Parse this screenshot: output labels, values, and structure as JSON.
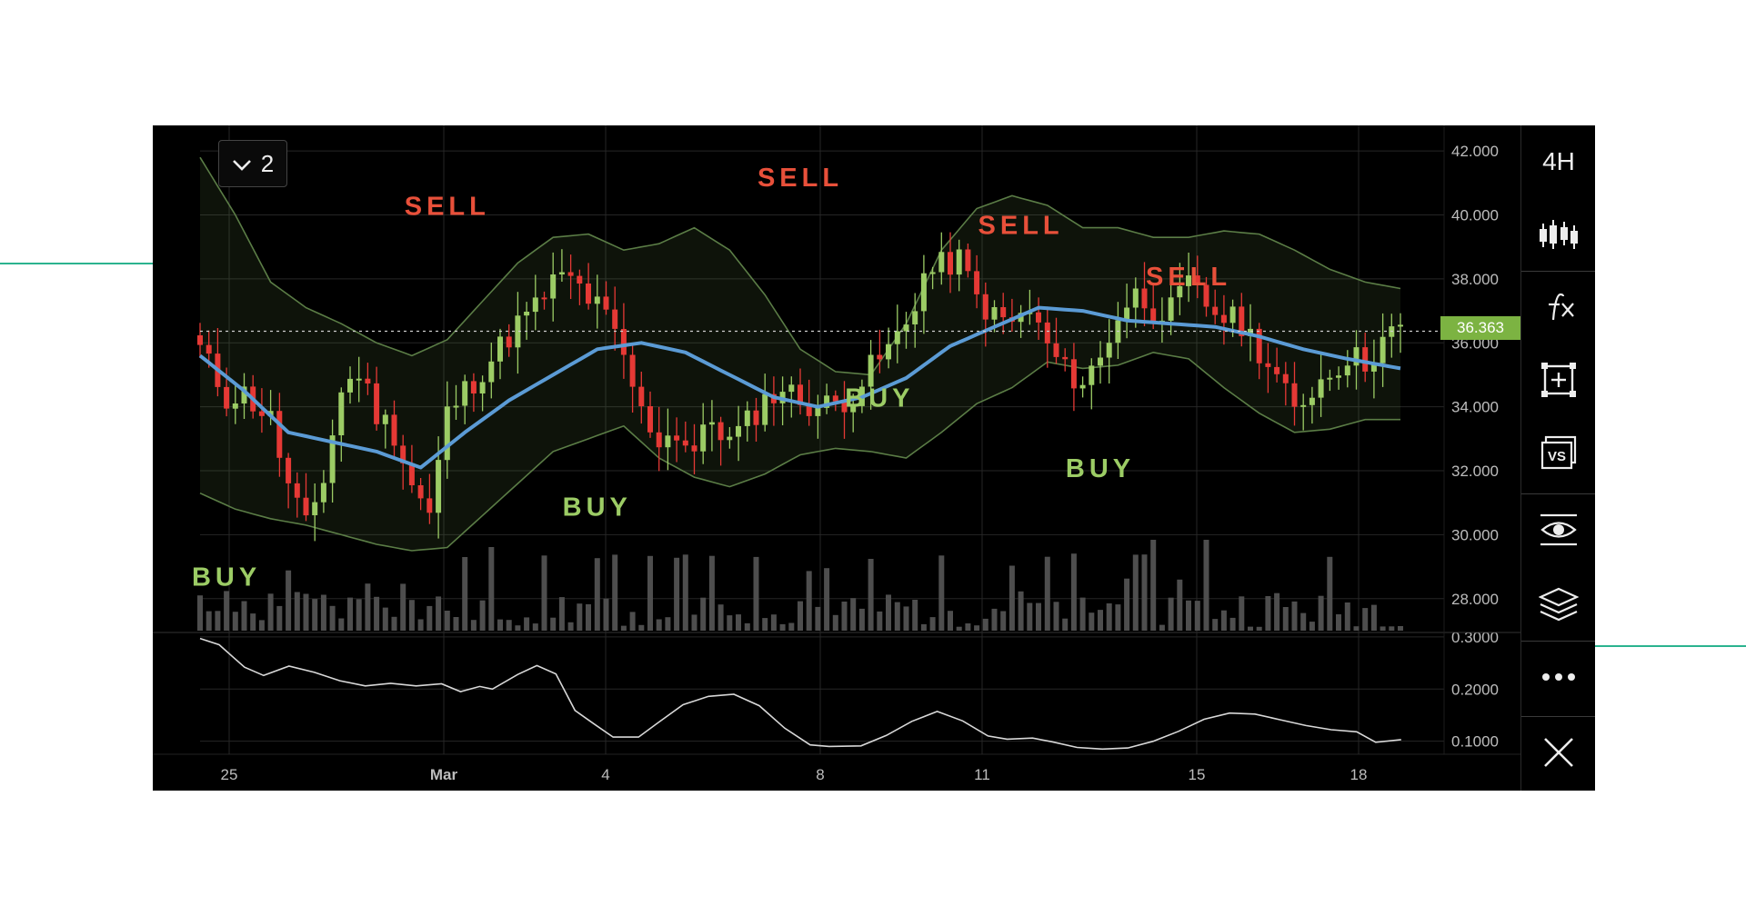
{
  "chart_data": {
    "type": "candlestick",
    "interval_label": "4H",
    "series_count_label": "2",
    "x_tick_labels": [
      "25",
      "Mar",
      "4",
      "8",
      "11",
      "15",
      "18"
    ],
    "price_axis": {
      "ticks": [
        "42.000",
        "40.000",
        "38.000",
        "36.000",
        "34.000",
        "32.000",
        "30.000",
        "28.000"
      ],
      "range": [
        27000,
        42800
      ]
    },
    "oscillator_axis": {
      "ticks": [
        "0.3000",
        "0.2000",
        "0.1000"
      ],
      "range": [
        0.075,
        0.305
      ]
    },
    "last_price": "36.363",
    "signals": [
      {
        "label": "BUY",
        "x": 3,
        "price": 28400
      },
      {
        "label": "SELL",
        "x": 28,
        "price": 40000
      },
      {
        "label": "BUY",
        "x": 45,
        "price": 30600
      },
      {
        "label": "SELL",
        "x": 68,
        "price": 40900
      },
      {
        "label": "BUY",
        "x": 77,
        "price": 34000
      },
      {
        "label": "SELL",
        "x": 93,
        "price": 39400
      },
      {
        "label": "BUY",
        "x": 102,
        "price": 31800
      },
      {
        "label": "SELL",
        "x": 112,
        "price": 37800
      }
    ],
    "anchors": {
      "close": [
        [
          0,
          35.8
        ],
        [
          3,
          34.3
        ],
        [
          5,
          34.4
        ],
        [
          8,
          33.6
        ],
        [
          10,
          31.5
        ],
        [
          12,
          30.2
        ],
        [
          14,
          31.8
        ],
        [
          16,
          34.5
        ],
        [
          18,
          35.1
        ],
        [
          20,
          33.8
        ],
        [
          22,
          33.2
        ],
        [
          24,
          31.6
        ],
        [
          26,
          30.6
        ],
        [
          28,
          33.8
        ],
        [
          30,
          34.5
        ],
        [
          33,
          35.5
        ],
        [
          36,
          36.6
        ],
        [
          38,
          37.1
        ],
        [
          40,
          37.9
        ],
        [
          42,
          38.0
        ],
        [
          44,
          37.4
        ],
        [
          46,
          36.8
        ],
        [
          48,
          35.5
        ],
        [
          50,
          33.8
        ],
        [
          52,
          33.0
        ],
        [
          54,
          33.2
        ],
        [
          56,
          32.6
        ],
        [
          58,
          33.6
        ],
        [
          60,
          32.9
        ],
        [
          62,
          33.5
        ],
        [
          64,
          34.2
        ],
        [
          66,
          34.6
        ],
        [
          68,
          34.2
        ],
        [
          70,
          34.0
        ],
        [
          72,
          34.1
        ],
        [
          74,
          34.4
        ],
        [
          76,
          35.2
        ],
        [
          78,
          35.8
        ],
        [
          80,
          36.6
        ],
        [
          82,
          38.1
        ],
        [
          84,
          38.4
        ],
        [
          86,
          38.6
        ],
        [
          88,
          37.4
        ],
        [
          90,
          36.8
        ],
        [
          92,
          36.6
        ],
        [
          94,
          37.0
        ],
        [
          96,
          35.9
        ],
        [
          98,
          35.1
        ],
        [
          100,
          34.8
        ],
        [
          102,
          35.5
        ],
        [
          104,
          36.9
        ],
        [
          106,
          37.5
        ],
        [
          108,
          37.1
        ],
        [
          110,
          37.0
        ],
        [
          112,
          37.8
        ],
        [
          114,
          37.2
        ],
        [
          116,
          36.8
        ],
        [
          118,
          36.6
        ],
        [
          120,
          35.8
        ],
        [
          122,
          34.9
        ],
        [
          124,
          33.8
        ],
        [
          126,
          34.6
        ],
        [
          128,
          35.1
        ],
        [
          130,
          35.6
        ],
        [
          132,
          35.4
        ],
        [
          134,
          36.1
        ],
        [
          136,
          36.4
        ]
      ],
      "ma": [
        [
          0,
          35.6
        ],
        [
          5,
          34.5
        ],
        [
          10,
          33.2
        ],
        [
          15,
          32.9
        ],
        [
          20,
          32.6
        ],
        [
          25,
          32.1
        ],
        [
          30,
          33.2
        ],
        [
          35,
          34.2
        ],
        [
          40,
          35.0
        ],
        [
          45,
          35.8
        ],
        [
          50,
          36.0
        ],
        [
          55,
          35.7
        ],
        [
          60,
          35.0
        ],
        [
          65,
          34.3
        ],
        [
          70,
          34.0
        ],
        [
          75,
          34.3
        ],
        [
          80,
          34.9
        ],
        [
          85,
          35.9
        ],
        [
          90,
          36.5
        ],
        [
          95,
          37.1
        ],
        [
          100,
          37.0
        ],
        [
          105,
          36.7
        ],
        [
          110,
          36.6
        ],
        [
          115,
          36.5
        ],
        [
          120,
          36.2
        ],
        [
          125,
          35.8
        ],
        [
          130,
          35.5
        ],
        [
          136,
          35.2
        ]
      ],
      "upper": [
        [
          0,
          41.8
        ],
        [
          4,
          40.0
        ],
        [
          8,
          37.9
        ],
        [
          12,
          37.1
        ],
        [
          16,
          36.6
        ],
        [
          20,
          36.0
        ],
        [
          24,
          35.6
        ],
        [
          28,
          36.1
        ],
        [
          32,
          37.3
        ],
        [
          36,
          38.5
        ],
        [
          40,
          39.3
        ],
        [
          44,
          39.4
        ],
        [
          48,
          38.9
        ],
        [
          52,
          39.1
        ],
        [
          56,
          39.6
        ],
        [
          60,
          38.9
        ],
        [
          64,
          37.5
        ],
        [
          68,
          35.8
        ],
        [
          72,
          35.1
        ],
        [
          76,
          35.0
        ],
        [
          80,
          36.6
        ],
        [
          84,
          38.9
        ],
        [
          88,
          40.2
        ],
        [
          92,
          40.6
        ],
        [
          96,
          40.3
        ],
        [
          100,
          39.6
        ],
        [
          104,
          39.6
        ],
        [
          108,
          39.3
        ],
        [
          112,
          39.3
        ],
        [
          116,
          39.5
        ],
        [
          120,
          39.4
        ],
        [
          124,
          38.9
        ],
        [
          128,
          38.3
        ],
        [
          132,
          37.9
        ],
        [
          136,
          37.7
        ]
      ],
      "lower": [
        [
          0,
          31.3
        ],
        [
          4,
          30.8
        ],
        [
          8,
          30.5
        ],
        [
          12,
          30.3
        ],
        [
          16,
          30.0
        ],
        [
          20,
          29.7
        ],
        [
          24,
          29.5
        ],
        [
          28,
          29.6
        ],
        [
          32,
          30.6
        ],
        [
          36,
          31.6
        ],
        [
          40,
          32.6
        ],
        [
          44,
          33.0
        ],
        [
          48,
          33.4
        ],
        [
          52,
          32.4
        ],
        [
          56,
          31.8
        ],
        [
          60,
          31.5
        ],
        [
          64,
          31.9
        ],
        [
          68,
          32.5
        ],
        [
          72,
          32.7
        ],
        [
          76,
          32.6
        ],
        [
          80,
          32.4
        ],
        [
          84,
          33.2
        ],
        [
          88,
          34.1
        ],
        [
          92,
          34.6
        ],
        [
          96,
          35.4
        ],
        [
          100,
          35.2
        ],
        [
          104,
          35.3
        ],
        [
          108,
          35.7
        ],
        [
          112,
          35.5
        ],
        [
          116,
          34.6
        ],
        [
          120,
          33.8
        ],
        [
          124,
          33.2
        ],
        [
          128,
          33.3
        ],
        [
          132,
          33.6
        ],
        [
          136,
          33.6
        ]
      ],
      "osc": [
        [
          0,
          0.297
        ],
        [
          3,
          0.285
        ],
        [
          7,
          0.242
        ],
        [
          10,
          0.226
        ],
        [
          14,
          0.244
        ],
        [
          18,
          0.232
        ],
        [
          22,
          0.216
        ],
        [
          26,
          0.206
        ],
        [
          30,
          0.211
        ],
        [
          34,
          0.206
        ],
        [
          38,
          0.21
        ],
        [
          41,
          0.195
        ],
        [
          44,
          0.205
        ],
        [
          46,
          0.2
        ],
        [
          50,
          0.228
        ],
        [
          53,
          0.245
        ],
        [
          56,
          0.229
        ],
        [
          59,
          0.159
        ],
        [
          62,
          0.133
        ],
        [
          65,
          0.108
        ],
        [
          69,
          0.108
        ],
        [
          72,
          0.135
        ],
        [
          76,
          0.17
        ],
        [
          80,
          0.186
        ],
        [
          84,
          0.19
        ],
        [
          88,
          0.168
        ],
        [
          92,
          0.125
        ],
        [
          96,
          0.093
        ],
        [
          99,
          0.09
        ],
        [
          104,
          0.091
        ],
        [
          108,
          0.111
        ],
        [
          112,
          0.138
        ],
        [
          116,
          0.157
        ],
        [
          120,
          0.139
        ],
        [
          124,
          0.11
        ],
        [
          127,
          0.104
        ],
        [
          131,
          0.106
        ],
        [
          134,
          0.099
        ],
        [
          138,
          0.088
        ],
        [
          142,
          0.085
        ],
        [
          146,
          0.087
        ],
        [
          150,
          0.1
        ],
        [
          154,
          0.119
        ],
        [
          158,
          0.142
        ],
        [
          162,
          0.154
        ],
        [
          166,
          0.152
        ],
        [
          170,
          0.141
        ],
        [
          174,
          0.13
        ],
        [
          178,
          0.122
        ],
        [
          182,
          0.118
        ],
        [
          185,
          0.098
        ],
        [
          189,
          0.103
        ]
      ]
    },
    "osc_x_scale": 0.72
  },
  "colors": {
    "up": "#9ccc65",
    "down": "#e53935",
    "ma": "#5b9bd5",
    "band_line": "#5b7d46",
    "band_fill": "rgba(130,170,95,0.11)",
    "volume": "#4e4e4e",
    "osc": "#d8d8d8",
    "sell": "#e8503a",
    "buy": "#9ccc65",
    "grid": "#262626",
    "axis_text": "#bdbdbd",
    "price_tag": "#7cb342"
  },
  "toolbar": {
    "items": [
      {
        "name": "timeframe-button",
        "icon": "text-4H"
      },
      {
        "name": "chart-type-button",
        "icon": "candles-icon"
      },
      {
        "name": "indicators-button",
        "icon": "fx-icon"
      },
      {
        "name": "add-chart-button",
        "icon": "add-frame-icon"
      },
      {
        "name": "compare-button",
        "icon": "vs-icon"
      },
      {
        "name": "visibility-button",
        "icon": "eye-icon"
      },
      {
        "name": "layers-button",
        "icon": "layers-icon"
      },
      {
        "name": "more-button",
        "icon": "more-icon"
      },
      {
        "name": "close-button",
        "icon": "close-icon"
      }
    ]
  }
}
